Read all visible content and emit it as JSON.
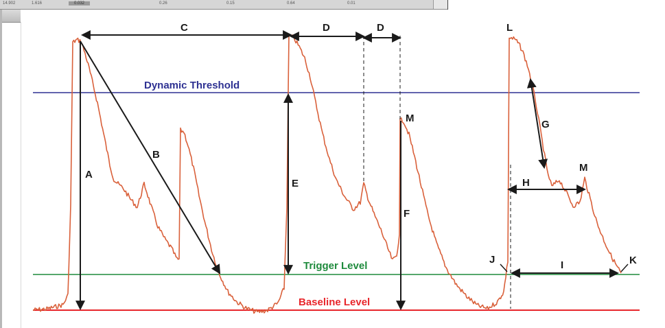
{
  "top_strip": {
    "cells": [
      "14.902",
      "1.616",
      "0.032",
      "0.26",
      "0.15",
      "0.64",
      "0.01"
    ]
  },
  "levels": {
    "dynamic_threshold": "Dynamic Threshold",
    "trigger_level": "Trigger Level",
    "baseline_level": "Baseline Level"
  },
  "markers": {
    "A": "A",
    "B": "B",
    "C": "C",
    "D1": "D",
    "D2": "D",
    "E": "E",
    "F": "F",
    "G": "G",
    "H": "H",
    "I": "I",
    "J": "J",
    "K": "K",
    "L": "L",
    "M1": "M",
    "M2": "M"
  },
  "colors": {
    "signal": "#d9603a",
    "dynamic_threshold": "#2e3192",
    "trigger_level": "#1e8a3c",
    "baseline_level": "#e8262b",
    "annotation": "#1a1a1a"
  }
}
